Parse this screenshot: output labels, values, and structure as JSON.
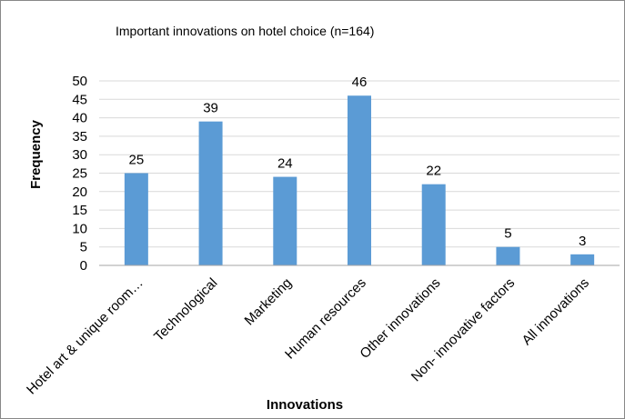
{
  "chart_data": {
    "type": "bar",
    "title": "Important innovations on hotel choice (n=164)",
    "xlabel": "Innovations",
    "ylabel": "Frequency",
    "categories": [
      "Hotel art & unique room…",
      "Technological",
      "Marketing",
      "Human resources",
      "Other innovations",
      "Non- innovative factors",
      "All innovations"
    ],
    "values": [
      25,
      39,
      24,
      46,
      22,
      5,
      3
    ],
    "ylim": [
      0,
      50
    ],
    "yticks": [
      0,
      5,
      10,
      15,
      20,
      25,
      30,
      35,
      40,
      45,
      50
    ],
    "grid": true,
    "legend": "none",
    "bar_color": "#5b9bd5",
    "grid_color": "#d9d9d9",
    "axis_color": "#a6a6a6"
  }
}
